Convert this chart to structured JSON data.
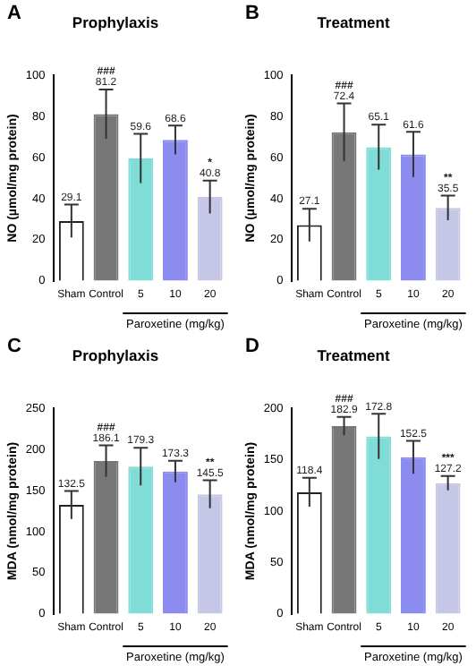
{
  "chart_data": [
    {
      "type": "bar",
      "title": "Prophylaxis",
      "ylabel": "NO (µmol/mg protein)",
      "xlabel": "Paroxetine (mg/kg)",
      "categories": [
        "Sham",
        "Control",
        "5",
        "10",
        "20"
      ],
      "values": [
        29.1,
        81.2,
        59.6,
        68.6,
        40.8
      ],
      "errors": [
        8,
        12,
        12,
        7,
        8
      ],
      "colors": [
        "#ffffff",
        "#777777",
        "#80dcd6",
        "#8c8cf0",
        "#c6c6e6"
      ],
      "ylim": [
        0,
        100
      ],
      "yticks": [
        0,
        20,
        40,
        60,
        80,
        100
      ],
      "data_labels": true,
      "grid": false,
      "legend": false,
      "annotations": [
        "A",
        {
          "text": "###",
          "x": "Control",
          "y": 93.2
        },
        {
          "text": "*",
          "x": "20",
          "y": 48.8
        }
      ]
    },
    {
      "type": "bar",
      "title": "Treatment",
      "ylabel": "NO (µmol/mg protein)",
      "xlabel": "Paroxetine (mg/kg)",
      "categories": [
        "Sham",
        "Control",
        "5",
        "10",
        "20"
      ],
      "values": [
        27.1,
        72.4,
        65.1,
        61.6,
        35.5
      ],
      "errors": [
        8,
        14,
        11,
        11,
        6
      ],
      "colors": [
        "#ffffff",
        "#777777",
        "#80dcd6",
        "#8c8cf0",
        "#c6c6e6"
      ],
      "ylim": [
        0,
        100
      ],
      "yticks": [
        0,
        20,
        40,
        60,
        80,
        100
      ],
      "data_labels": true,
      "grid": false,
      "legend": false,
      "annotations": [
        "B",
        {
          "text": "###",
          "x": "Control",
          "y": 86.4
        },
        {
          "text": "**",
          "x": "20",
          "y": 41.5
        }
      ]
    },
    {
      "type": "bar",
      "title": "Prophylaxis",
      "ylabel": "MDA (nmol/mg protein)",
      "xlabel": "Paroxetine (mg/kg)",
      "categories": [
        "Sham",
        "Control",
        "5",
        "10",
        "20"
      ],
      "values": [
        132.5,
        186.1,
        179.3,
        173.3,
        145.5
      ],
      "errors": [
        17,
        19,
        23,
        13,
        17
      ],
      "colors": [
        "#ffffff",
        "#777777",
        "#80dcd6",
        "#8c8cf0",
        "#c6c6e6"
      ],
      "ylim": [
        0,
        250
      ],
      "yticks": [
        0,
        50,
        100,
        150,
        200,
        250
      ],
      "data_labels": true,
      "grid": false,
      "legend": false,
      "annotations": [
        "C",
        {
          "text": "###",
          "x": "Control",
          "y": 205.1
        },
        {
          "text": "**",
          "x": "20",
          "y": 162.5
        }
      ]
    },
    {
      "type": "bar",
      "title": "Treatment",
      "ylabel": "MDA (nmol/mg protein)",
      "xlabel": "Paroxetine (mg/kg)",
      "categories": [
        "Sham",
        "Control",
        "5",
        "10",
        "20"
      ],
      "values": [
        118.4,
        182.9,
        172.8,
        152.5,
        127.2
      ],
      "errors": [
        14,
        9,
        22,
        16,
        7
      ],
      "colors": [
        "#ffffff",
        "#777777",
        "#80dcd6",
        "#8c8cf0",
        "#c6c6e6"
      ],
      "ylim": [
        0,
        200
      ],
      "yticks": [
        0,
        50,
        100,
        150,
        200
      ],
      "data_labels": true,
      "grid": false,
      "legend": false,
      "annotations": [
        "D",
        {
          "text": "###",
          "x": "Control",
          "y": 191.9
        },
        {
          "text": "***",
          "x": "20",
          "y": 134.2
        }
      ]
    }
  ]
}
